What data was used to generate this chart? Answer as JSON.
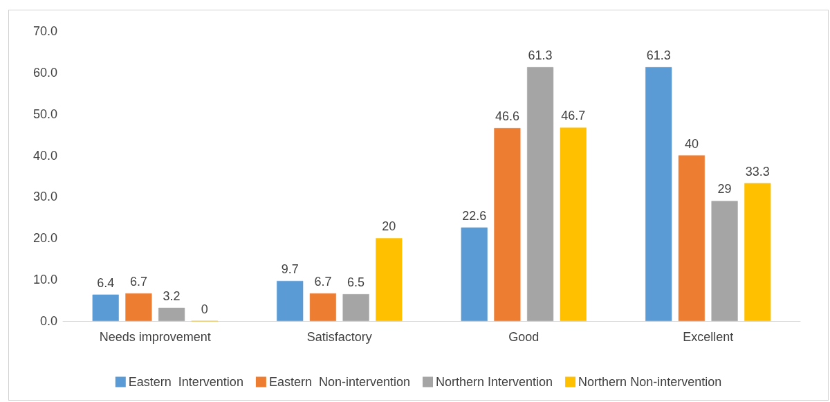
{
  "chart_data": {
    "type": "bar",
    "categories": [
      "Needs improvement",
      "Satisfactory",
      "Good",
      "Excellent"
    ],
    "series": [
      {
        "name": "Eastern  Intervention",
        "color": "#5b9bd5",
        "values": [
          6.4,
          9.7,
          22.6,
          61.3
        ]
      },
      {
        "name": "Eastern  Non-intervention",
        "color": "#ed7d31",
        "values": [
          6.7,
          6.7,
          46.6,
          40
        ]
      },
      {
        "name": "Northern Intervention",
        "color": "#a5a5a5",
        "values": [
          3.2,
          6.5,
          61.3,
          29
        ]
      },
      {
        "name": "Northern Non-intervention",
        "color": "#ffc000",
        "values": [
          0,
          20,
          46.7,
          33.3
        ]
      }
    ],
    "ylim": [
      0,
      70
    ],
    "yticks": [
      {
        "value": 0,
        "label": "0.0"
      },
      {
        "value": 10,
        "label": "10.0"
      },
      {
        "value": 20,
        "label": "20.0"
      },
      {
        "value": 30,
        "label": "30.0"
      },
      {
        "value": 40,
        "label": "40.0"
      },
      {
        "value": 50,
        "label": "50.0"
      },
      {
        "value": 60,
        "label": "60.0"
      },
      {
        "value": 70,
        "label": "70.0"
      }
    ],
    "data_labels": true,
    "grid": false,
    "legend": "bottom"
  }
}
